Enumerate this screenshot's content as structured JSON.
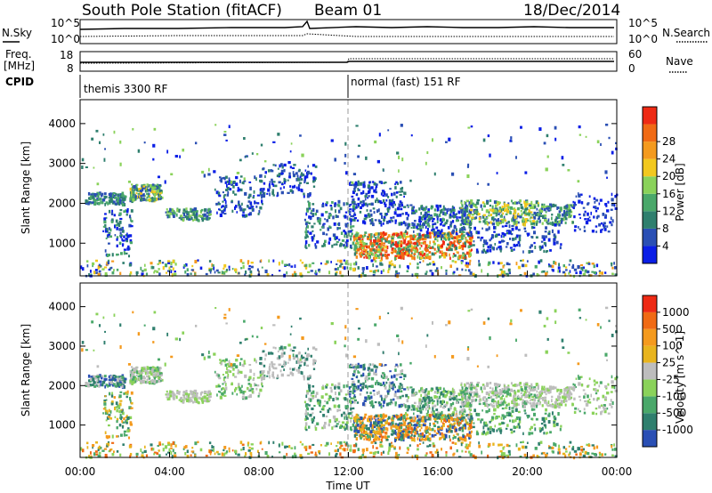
{
  "header": {
    "station": "South Pole Station (fitACF)",
    "beam": "Beam 01",
    "date": "18/Dec/2014"
  },
  "params": {
    "nsky_label": "N.Sky",
    "nsearch_label": "N.Search",
    "freq_label_1": "Freq.",
    "freq_label_2": "[MHz]",
    "nave_label": "Nave",
    "cpid_label": "CPID",
    "left_ticks_top": [
      "10^5",
      "10^0"
    ],
    "right_ticks_top": [
      "10^5",
      "10^0"
    ],
    "left_ticks_freq": [
      "18",
      "8"
    ],
    "right_ticks_nave": [
      "60",
      "0"
    ],
    "cpid_segments": [
      {
        "start": "00:00",
        "label": "themis 3300 RF"
      },
      {
        "start": "12:00",
        "label": "normal (fast) 151 RF"
      }
    ]
  },
  "colors": {
    "power_scale": [
      "#0a1ee6",
      "#2a4fb4",
      "#2f7f6e",
      "#4aa86a",
      "#8ad25a",
      "#f2c81e",
      "#f49a1e",
      "#f06a14",
      "#ee2a14"
    ],
    "velocity_scale": [
      "#2a4fb4",
      "#2f7f6e",
      "#4aa86a",
      "#8ad25a",
      "#bdbdbd",
      "#e8b41e",
      "#f49a1e",
      "#f06a14",
      "#ee2a14"
    ]
  },
  "chart_data": [
    {
      "type": "heatmap",
      "name": "power",
      "ylabel": "Slant Range [km]",
      "yticks": [
        "1000",
        "2000",
        "3000",
        "4000"
      ],
      "ylim": [
        180,
        4600
      ],
      "xlim": [
        "00:00",
        "24:00"
      ],
      "colorbar_label": "Power [dB]",
      "colorbar_ticks": [
        "4",
        "8",
        "12",
        "16",
        "20",
        "24",
        "28"
      ],
      "colorbar_range": [
        0,
        32
      ]
    },
    {
      "type": "heatmap",
      "name": "velocity",
      "ylabel": "Slant Range [km]",
      "yticks": [
        "1000",
        "2000",
        "3000",
        "4000"
      ],
      "ylim": [
        180,
        4600
      ],
      "xlim": [
        "00:00",
        "24:00"
      ],
      "xlabel": "Time UT",
      "xticks": [
        "00:00",
        "04:00",
        "08:00",
        "12:00",
        "16:00",
        "20:00",
        "00:00"
      ],
      "colorbar_label": "Velocity [m s^-1]",
      "colorbar_ticks": [
        "1000",
        "500",
        "100",
        "25",
        "-25",
        "-100",
        "-500",
        "-1000"
      ]
    }
  ]
}
